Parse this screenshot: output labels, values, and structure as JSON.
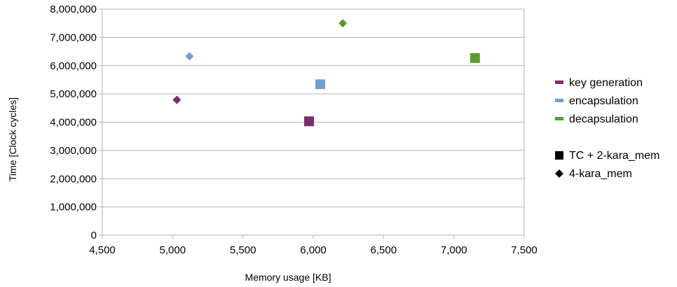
{
  "chart_data": {
    "type": "scatter",
    "xlabel": "Memory usage [KB]",
    "ylabel": "Time [Clock cycles]",
    "xlim": [
      4500,
      7500
    ],
    "ylim": [
      0,
      8000000
    ],
    "x_ticks": [
      "4,500",
      "5,000",
      "5,500",
      "6,000",
      "6,500",
      "7,000",
      "7,500"
    ],
    "y_ticks": [
      "0",
      "1,000,000",
      "2,000,000",
      "3,000,000",
      "4,000,000",
      "5,000,000",
      "6,000,000",
      "7,000,000",
      "8,000,000"
    ],
    "grid": "horizontal",
    "legend_position": "right",
    "series": [
      {
        "name": "key generation",
        "color": "#7e2a6e",
        "points": [
          {
            "x": 5970,
            "y": 4030000,
            "marker": "square"
          },
          {
            "x": 5030,
            "y": 4790000,
            "marker": "diamond"
          }
        ]
      },
      {
        "name": "encapsulation",
        "color": "#739ed3",
        "points": [
          {
            "x": 6050,
            "y": 5340000,
            "marker": "square"
          },
          {
            "x": 5120,
            "y": 6330000,
            "marker": "diamond"
          }
        ]
      },
      {
        "name": "decapsulation",
        "color": "#5a9e2a",
        "points": [
          {
            "x": 7150,
            "y": 6270000,
            "marker": "square"
          },
          {
            "x": 6210,
            "y": 7500000,
            "marker": "diamond"
          }
        ]
      }
    ],
    "marker_legend": [
      {
        "name": "TC + 2-kara_mem",
        "marker": "square"
      },
      {
        "name": "4-kara_mem",
        "marker": "diamond"
      }
    ]
  }
}
